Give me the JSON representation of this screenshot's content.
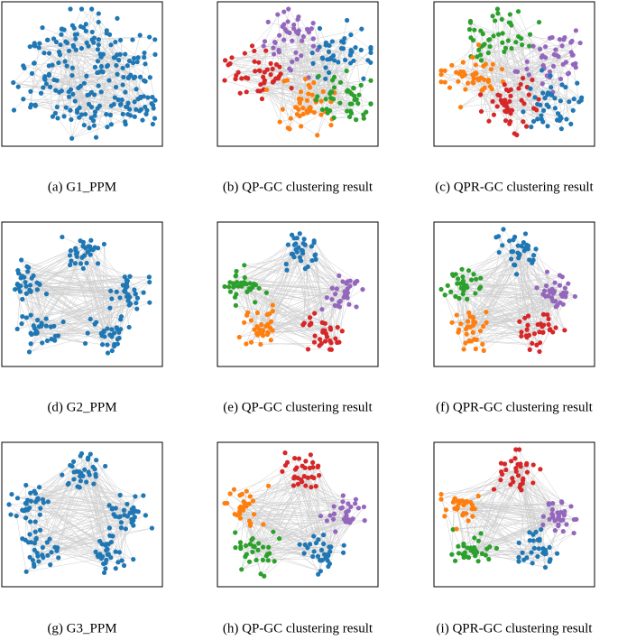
{
  "panels": [
    {
      "caption": "(a) G1_PPM",
      "colors": [
        "#1f77b4",
        "#1f77b4",
        "#1f77b4",
        "#1f77b4",
        "#1f77b4"
      ]
    },
    {
      "caption": "(b) QP-GC clustering result",
      "colors": [
        "#9467bd",
        "#1f77b4",
        "#d62728",
        "#ff7f0e",
        "#2ca02c"
      ]
    },
    {
      "caption": "(c) QPR-GC clustering result",
      "colors": [
        "#2ca02c",
        "#9467bd",
        "#ff7f0e",
        "#d62728",
        "#1f77b4"
      ]
    },
    {
      "caption": "(d) G2_PPM",
      "colors": [
        "#1f77b4",
        "#1f77b4",
        "#1f77b4",
        "#1f77b4",
        "#1f77b4"
      ]
    },
    {
      "caption": "(e) QP-GC clustering result",
      "colors": [
        "#1f77b4",
        "#9467bd",
        "#d62728",
        "#ff7f0e",
        "#2ca02c"
      ]
    },
    {
      "caption": "(f) QPR-GC clustering result",
      "colors": [
        "#1f77b4",
        "#9467bd",
        "#d62728",
        "#ff7f0e",
        "#2ca02c"
      ]
    },
    {
      "caption": "(g) G3_PPM",
      "colors": [
        "#1f77b4",
        "#1f77b4",
        "#1f77b4",
        "#1f77b4",
        "#1f77b4"
      ]
    },
    {
      "caption": "(h) QP-GC clustering result",
      "colors": [
        "#d62728",
        "#9467bd",
        "#1f77b4",
        "#2ca02c",
        "#ff7f0e"
      ]
    },
    {
      "caption": "(i) QPR-GC clustering result",
      "colors": [
        "#d62728",
        "#9467bd",
        "#1f77b4",
        "#2ca02c",
        "#ff7f0e"
      ]
    }
  ]
}
